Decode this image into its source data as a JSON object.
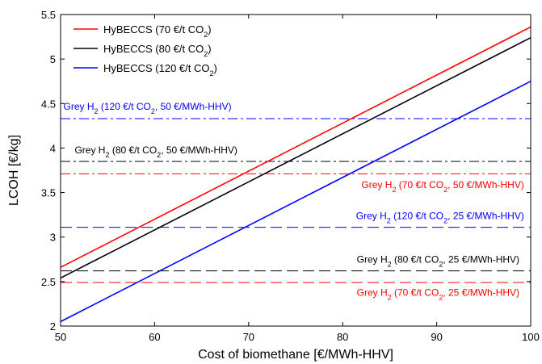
{
  "chart_data": {
    "type": "line",
    "xlabel": "Cost of biomethane [€/MWh-HHV]",
    "ylabel": "LCOH [€/kg]",
    "xlim": [
      50,
      100
    ],
    "ylim": [
      2,
      5.5
    ],
    "xticks": [
      50,
      60,
      70,
      80,
      90,
      100
    ],
    "yticks": [
      2,
      2.5,
      3,
      3.5,
      4,
      4.5,
      5,
      5.5
    ],
    "xtick_labels": [
      "50",
      "60",
      "70",
      "80",
      "90",
      "100"
    ],
    "ytick_labels": [
      "2",
      "2.5",
      "3",
      "3.5",
      "4",
      "4.5",
      "5",
      "5.5"
    ],
    "legend_position": "top-left",
    "series": [
      {
        "name": "HyBECCS (70 €/t CO",
        "name_sub": "2",
        "name_end": ")",
        "color": "#ff0000",
        "x": [
          50,
          100
        ],
        "y": [
          2.66,
          5.36
        ]
      },
      {
        "name": "HyBECCS (80 €/t CO",
        "name_sub": "2",
        "name_end": ")",
        "color": "#000000",
        "x": [
          50,
          100
        ],
        "y": [
          2.54,
          5.24
        ]
      },
      {
        "name": "HyBECCS (120 €/t CO",
        "name_sub": "2",
        "name_end": ")",
        "color": "#0000ff",
        "x": [
          50,
          100
        ],
        "y": [
          2.05,
          4.75
        ]
      }
    ],
    "reference_lines": [
      {
        "y": 4.33,
        "color": "#0000ff",
        "style": "dashdot",
        "label_pre": "Grey H",
        "label_sub1": "2",
        "label_mid": " (120 €/t CO",
        "label_sub2": "2",
        "label_end": ", 50 €/MWh-HHV)",
        "label_x": 50.3,
        "label_y": 4.43,
        "anchor": "start"
      },
      {
        "y": 3.85,
        "color": "#000000",
        "style": "dashdot",
        "label_pre": "Grey H",
        "label_sub1": "2",
        "label_mid": " (80 €/t CO",
        "label_sub2": "2",
        "label_end": ", 50 €/MWh-HHV)",
        "label_x": 51.5,
        "label_y": 3.94,
        "anchor": "start"
      },
      {
        "y": 3.71,
        "color": "#ff0000",
        "style": "dashdot",
        "label_pre": "Grey H",
        "label_sub1": "2",
        "label_mid": " (70 €/t CO",
        "label_sub2": "2",
        "label_end": ", 50 €/MWh-HHV)",
        "label_x": 99.3,
        "label_y": 3.55,
        "anchor": "end"
      },
      {
        "y": 3.11,
        "color": "#0000ff",
        "style": "dash",
        "label_pre": "Grey H",
        "label_sub1": "2",
        "label_mid": " (120 €/t CO",
        "label_sub2": "2",
        "label_end": ", 25 €/MWh-HHV)",
        "label_x": 99.3,
        "label_y": 3.2,
        "anchor": "end"
      },
      {
        "y": 2.62,
        "color": "#000000",
        "style": "dash",
        "label_pre": "Grey H",
        "label_sub1": "2",
        "label_mid": " (80 €/t CO",
        "label_sub2": "2",
        "label_end": ", 25 €/MWh-HHV)",
        "label_x": 98.8,
        "label_y": 2.71,
        "anchor": "end"
      },
      {
        "y": 2.49,
        "color": "#ff0000",
        "style": "dash",
        "label_pre": "Grey H",
        "label_sub1": "2",
        "label_mid": " (70 €/t CO",
        "label_sub2": "2",
        "label_end": ", 25 €/MWh-HHV)",
        "label_x": 98.8,
        "label_y": 2.34,
        "anchor": "end"
      }
    ]
  }
}
